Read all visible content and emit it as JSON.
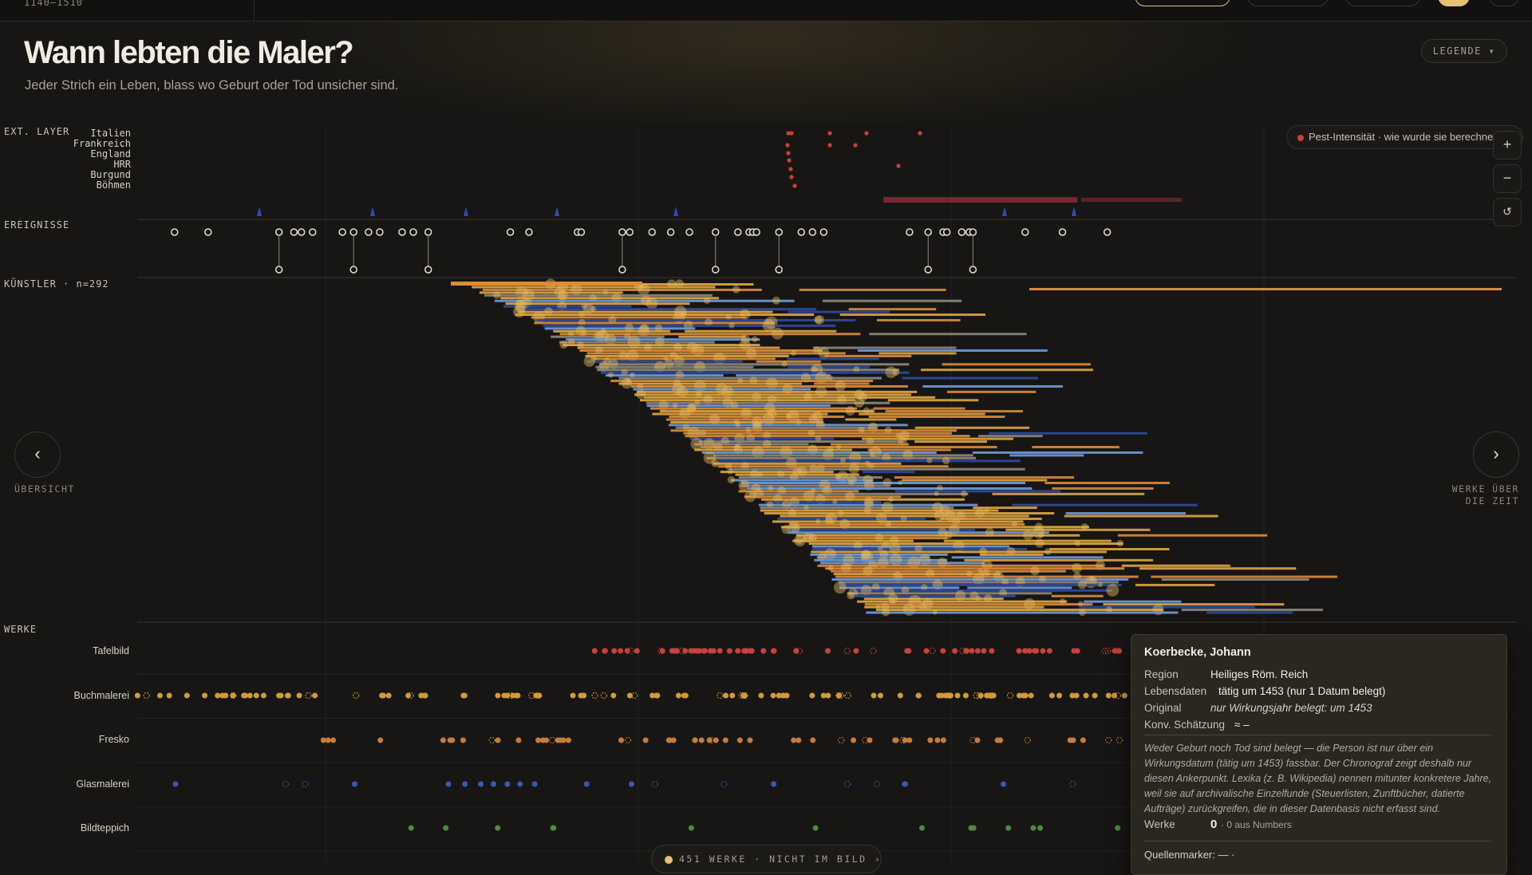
{
  "header": {
    "range": "1140–1510"
  },
  "title": "Wann lebten die Maler?",
  "subtitle": "Jeder Strich ein Leben, blass wo Geburt oder Tod unsicher sind.",
  "legend_button": "LEGENDE ▾",
  "sections": {
    "ext_layer": "EXT. LAYER",
    "ereignisse": "EREIGNISSE",
    "kuenstler": "KÜNSTLER · n=292",
    "werke": "WERKE"
  },
  "regions": [
    "Italien",
    "Frankreich",
    "England",
    "HRR",
    "Burgund",
    "Böhmen"
  ],
  "pest_pill": "Pest-Intensität · wie wurde sie berechnet?",
  "zoom": {
    "in": "+",
    "out": "−",
    "reset": "↺"
  },
  "nav": {
    "prev_icon": "‹",
    "prev_label": "ÜBERSICHT",
    "next_icon": "›",
    "next_label_1": "WERKE ÜBER",
    "next_label_2": "DIE ZEIT"
  },
  "works_categories": [
    "Tafelbild",
    "Buchmalerei",
    "Fresko",
    "Glasmalerei",
    "Bildteppich"
  ],
  "tooltip": {
    "name": "Koerbecke, Johann",
    "region_key": "Region",
    "region_val": "Heiliges Röm. Reich",
    "lebensdaten_key": "Lebensdaten",
    "lebensdaten_val": "tätig um 1453 (nur 1 Datum belegt)",
    "original_key": "Original",
    "original_val": "nur Wirkungsjahr belegt: um 1453",
    "konv_key": "Konv. Schätzung",
    "konv_val": "≈ –",
    "note": "Weder Geburt noch Tod sind belegt — die Person ist nur über ein Wirkungsdatum (tätig um 1453) fassbar. Der Chronograf zeigt deshalb nur diesen Ankerpunkt. Lexika (z. B. Wikipedia) nennen mitunter konkretere Jahre, weil sie auf archivalische Einzelfunde (Steuerlisten, Zunftbücher, datierte Aufträge) zurückgreifen, die in dieser Datenbasis nicht erfasst sind.",
    "werke_key": "Werke",
    "werke_count": "0",
    "werke_sub": "· 0 aus Numbers",
    "quellen": "Quellenmarker: — ·"
  },
  "offscreen_pill": "451 WERKE · NICHT IM BILD ›",
  "colors": {
    "background": "#171614",
    "italien": "#d98c3a",
    "frankreich": "#e0a540",
    "hrr": "#6f9bd8",
    "burgund": "#2f4a9e",
    "grey": "#8d887c",
    "pest": "#c8413e",
    "tafelbild": "#c8413e",
    "buchmalerei": "#d29a3a",
    "fresko": "#c87c3a",
    "glasmalerei": "#3b57b8",
    "bildteppich": "#4f8a3e"
  },
  "chart_data": {
    "type": "timeline",
    "x_range": [
      1140,
      1510
    ],
    "artist_count": 292,
    "pest_band": [
      1340,
      1420
    ],
    "event_years": [
      1150,
      1159,
      1178,
      1182,
      1184,
      1187,
      1195,
      1198,
      1202,
      1205,
      1211,
      1214,
      1218,
      1240,
      1245,
      1258,
      1259,
      1270,
      1272,
      1278,
      1283,
      1288,
      1295,
      1301,
      1304,
      1305,
      1306,
      1312,
      1318,
      1321,
      1324,
      1347,
      1352,
      1356,
      1357,
      1361,
      1363,
      1364,
      1378,
      1388,
      1400
    ]
  }
}
